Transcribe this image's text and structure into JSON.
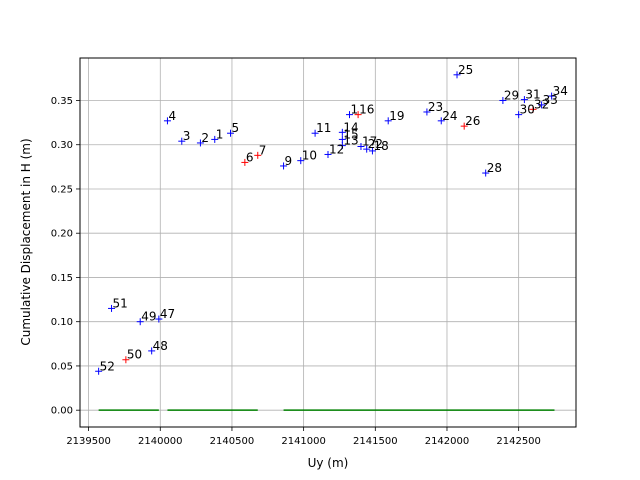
{
  "chart_data": {
    "type": "scatter",
    "xlabel": "Uy (m)",
    "ylabel": "Cumulative Displacement in H (m)",
    "xlim": [
      2139440,
      2142900
    ],
    "ylim": [
      -0.019,
      0.398
    ],
    "x_ticks": [
      2139500,
      2140000,
      2140500,
      2141000,
      2141500,
      2142000,
      2142500
    ],
    "x_tick_labels": [
      "2139500",
      "2140000",
      "2140500",
      "2141000",
      "2141500",
      "2142000",
      "2142500"
    ],
    "y_ticks": [
      0.0,
      0.05,
      0.1,
      0.15,
      0.2,
      0.25,
      0.3,
      0.35
    ],
    "y_tick_labels": [
      "0.00",
      "0.05",
      "0.10",
      "0.15",
      "0.20",
      "0.25",
      "0.30",
      "0.35"
    ],
    "grid": true,
    "colors": {
      "blue": "#0000ff",
      "red": "#ff0000",
      "green": "#008000",
      "grid": "#b0b0b0"
    },
    "points": [
      {
        "label": "1",
        "x": 2140380,
        "y": 0.306,
        "color": "blue"
      },
      {
        "label": "2",
        "x": 2140280,
        "y": 0.302,
        "color": "blue"
      },
      {
        "label": "3",
        "x": 2140150,
        "y": 0.304,
        "color": "blue"
      },
      {
        "label": "4",
        "x": 2140050,
        "y": 0.327,
        "color": "blue"
      },
      {
        "label": "5",
        "x": 2140490,
        "y": 0.313,
        "color": "blue"
      },
      {
        "label": "6",
        "x": 2140590,
        "y": 0.28,
        "color": "red"
      },
      {
        "label": "7",
        "x": 2140680,
        "y": 0.288,
        "color": "red"
      },
      {
        "label": "9",
        "x": 2140860,
        "y": 0.276,
        "color": "blue"
      },
      {
        "label": "10",
        "x": 2140980,
        "y": 0.282,
        "color": "blue"
      },
      {
        "label": "11",
        "x": 2141080,
        "y": 0.313,
        "color": "blue"
      },
      {
        "label": "12",
        "x": 2141170,
        "y": 0.289,
        "color": "blue"
      },
      {
        "label": "13",
        "x": 2141270,
        "y": 0.299,
        "color": "blue"
      },
      {
        "label": "14",
        "x": 2141270,
        "y": 0.314,
        "color": "blue"
      },
      {
        "label": "15",
        "x": 2141270,
        "y": 0.306,
        "color": "blue"
      },
      {
        "label": "16",
        "x": 2141380,
        "y": 0.334,
        "color": "red"
      },
      {
        "label": "1",
        "x": 2141320,
        "y": 0.334,
        "color": "blue"
      },
      {
        "label": "17",
        "x": 2141400,
        "y": 0.298,
        "color": "blue"
      },
      {
        "label": "22",
        "x": 2141440,
        "y": 0.295,
        "color": "blue"
      },
      {
        "label": "18",
        "x": 2141480,
        "y": 0.293,
        "color": "blue"
      },
      {
        "label": "19",
        "x": 2141590,
        "y": 0.327,
        "color": "blue"
      },
      {
        "label": "23",
        "x": 2141860,
        "y": 0.337,
        "color": "blue"
      },
      {
        "label": "24",
        "x": 2141960,
        "y": 0.327,
        "color": "blue"
      },
      {
        "label": "25",
        "x": 2142070,
        "y": 0.379,
        "color": "blue"
      },
      {
        "label": "26",
        "x": 2142120,
        "y": 0.321,
        "color": "red"
      },
      {
        "label": "28",
        "x": 2142270,
        "y": 0.268,
        "color": "blue"
      },
      {
        "label": "29",
        "x": 2142390,
        "y": 0.35,
        "color": "blue"
      },
      {
        "label": "30",
        "x": 2142500,
        "y": 0.334,
        "color": "blue"
      },
      {
        "label": "31",
        "x": 2142540,
        "y": 0.351,
        "color": "blue"
      },
      {
        "label": "32",
        "x": 2142600,
        "y": 0.34,
        "color": "red"
      },
      {
        "label": "33",
        "x": 2142660,
        "y": 0.345,
        "color": "blue"
      },
      {
        "label": "34",
        "x": 2142730,
        "y": 0.355,
        "color": "blue"
      },
      {
        "label": "47",
        "x": 2139990,
        "y": 0.103,
        "color": "blue"
      },
      {
        "label": "48",
        "x": 2139940,
        "y": 0.067,
        "color": "blue"
      },
      {
        "label": "49",
        "x": 2139860,
        "y": 0.1,
        "color": "blue"
      },
      {
        "label": "50",
        "x": 2139760,
        "y": 0.057,
        "color": "red"
      },
      {
        "label": "51",
        "x": 2139660,
        "y": 0.115,
        "color": "blue"
      },
      {
        "label": "52",
        "x": 2139570,
        "y": 0.044,
        "color": "blue"
      }
    ],
    "segments": [
      {
        "x": [
          2139570,
          2139990
        ],
        "y": [
          0.0,
          0.0
        ],
        "color": "green"
      },
      {
        "x": [
          2140050,
          2140680
        ],
        "y": [
          0.0,
          0.0
        ],
        "color": "green"
      },
      {
        "x": [
          2140860,
          2142750
        ],
        "y": [
          0.0,
          0.0
        ],
        "color": "green"
      }
    ]
  }
}
